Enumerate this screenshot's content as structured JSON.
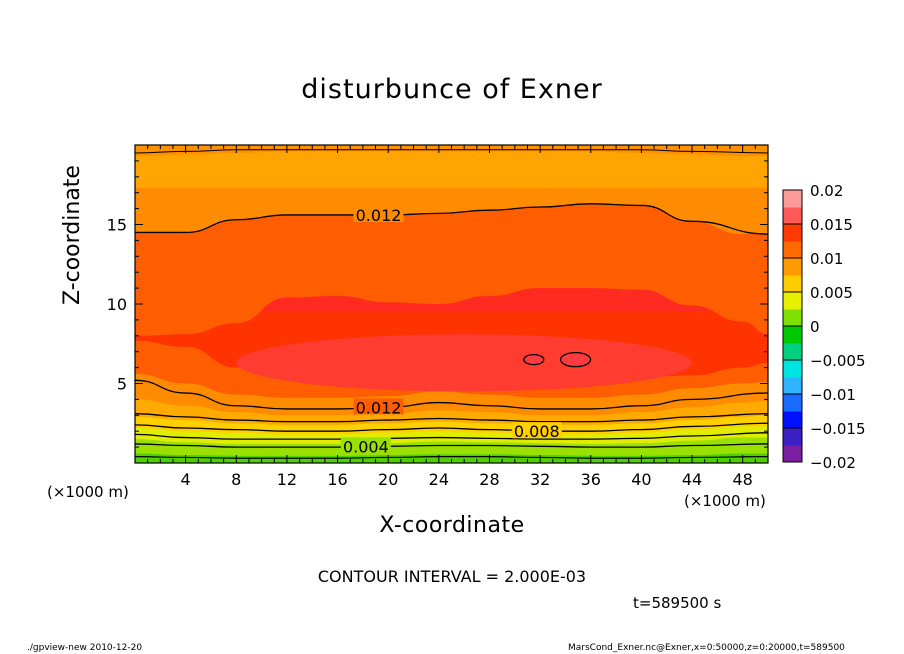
{
  "chart_data": {
    "type": "heatmap",
    "title": "disturbunce of Exner",
    "xlabel": "X-coordinate",
    "ylabel": "Z-coordinate",
    "x_unit": "(×1000 m)",
    "y_unit": "(×1000 m)",
    "xlim": [
      0,
      50
    ],
    "ylim": [
      0,
      20
    ],
    "x_ticks": [
      4,
      8,
      12,
      16,
      20,
      24,
      28,
      32,
      36,
      40,
      44,
      48
    ],
    "y_ticks": [
      5,
      10,
      15
    ],
    "colorbar": {
      "range": [
        -0.02,
        0.02
      ],
      "step": 0.0025,
      "tick_labels": [
        "0.02",
        "0.015",
        "0.01",
        "0.005",
        "0",
        "−0.005",
        "−0.01",
        "−0.015",
        "−0.02"
      ],
      "colors": [
        "#7a1fa2",
        "#3a20c4",
        "#0010ff",
        "#1a6bff",
        "#2fb5ff",
        "#00e5e0",
        "#00d080",
        "#00c800",
        "#7ee000",
        "#e8f000",
        "#ffcc00",
        "#ff9a00",
        "#ff6a00",
        "#ff3a00",
        "#ff5a5a",
        "#ff9a9a"
      ]
    },
    "contours": [
      {
        "label": "0.004",
        "z": [
          1.2,
          1.1,
          1.0,
          1.0,
          1.0,
          1.05,
          1.1,
          1.1,
          1.05,
          1.0,
          1.0,
          1.1,
          1.2
        ]
      },
      {
        "label": "",
        "z": [
          1.8,
          1.6,
          1.5,
          1.5,
          1.5,
          1.55,
          1.6,
          1.55,
          1.5,
          1.5,
          1.55,
          1.7,
          1.9
        ]
      },
      {
        "label": "0.008",
        "z": [
          2.4,
          2.2,
          2.1,
          2.0,
          2.0,
          2.1,
          2.2,
          2.1,
          2.0,
          2.0,
          2.1,
          2.3,
          2.5
        ]
      },
      {
        "label": "",
        "z": [
          3.1,
          2.9,
          2.7,
          2.6,
          2.6,
          2.7,
          2.8,
          2.7,
          2.6,
          2.6,
          2.7,
          2.9,
          3.1
        ]
      },
      {
        "label": "0.012",
        "z": [
          5.2,
          4.4,
          3.6,
          3.4,
          3.4,
          3.5,
          3.8,
          3.6,
          3.4,
          3.4,
          3.6,
          4.0,
          4.4
        ]
      },
      {
        "label": "0.012",
        "z": [
          14.5,
          14.5,
          15.3,
          15.6,
          15.6,
          15.6,
          15.7,
          15.9,
          16.1,
          16.3,
          16.2,
          15.2,
          14.4
        ]
      }
    ],
    "contour_interval": "CONTOUR INTERVAL = 2.000E-03",
    "time": "t=589500 s"
  },
  "footer": {
    "left": "./gpview-new   2010-12-20",
    "right": "MarsCond_Exner.nc@Exner,x=0:50000,z=0:20000,t=589500"
  }
}
